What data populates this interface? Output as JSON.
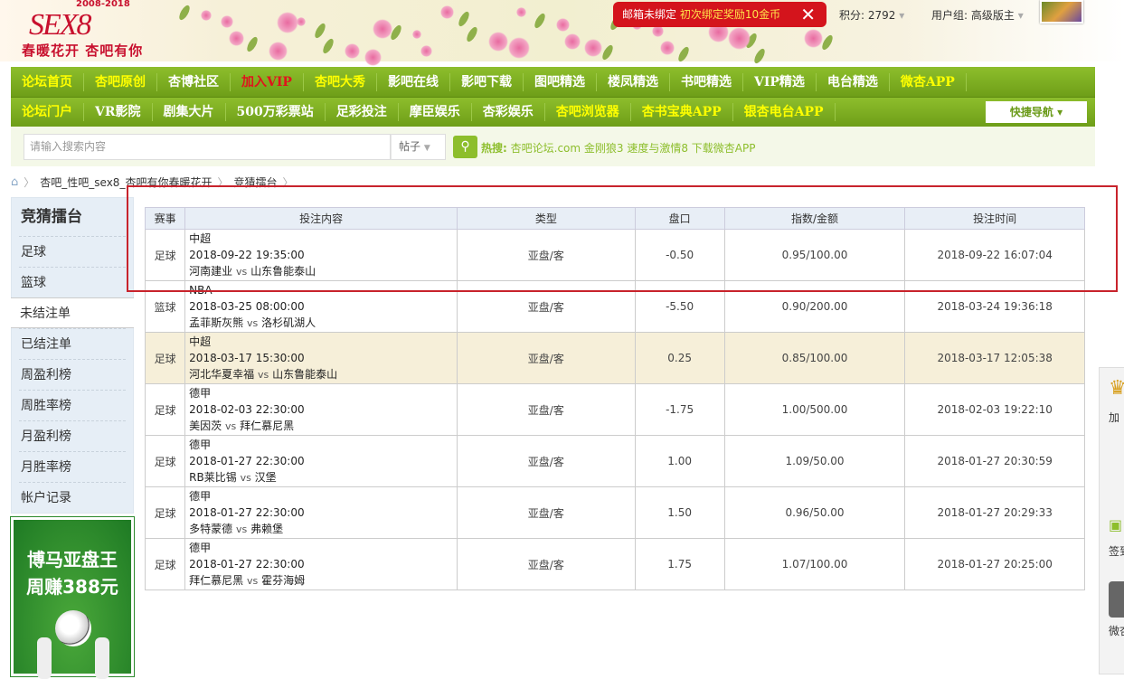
{
  "header": {
    "logo_text": "SEX8",
    "logo_years": "2008-2018",
    "slogan": "春暖花开 杏吧有你",
    "alert": {
      "prefix": "邮箱未绑定",
      "highlight": "初次绑定奖励10金币",
      "close_icon": "close-icon"
    },
    "points": "积分: 2792",
    "user_group": "用户组: 高级版主"
  },
  "nav_row1": [
    {
      "label": "论坛首页",
      "color": "yellow"
    },
    {
      "label": "杏吧原创",
      "color": "yellow"
    },
    {
      "label": "杏博社区",
      "color": "white"
    },
    {
      "label": "加入VIP",
      "color": "red"
    },
    {
      "label": "杏吧大秀",
      "color": "yellow"
    },
    {
      "label": "影吧在线",
      "color": "white"
    },
    {
      "label": "影吧下载",
      "color": "white"
    },
    {
      "label": "图吧精选",
      "color": "white"
    },
    {
      "label": "楼凤精选",
      "color": "white"
    },
    {
      "label": "书吧精选",
      "color": "white"
    },
    {
      "label": "VIP精选",
      "color": "white"
    },
    {
      "label": "电台精选",
      "color": "white"
    },
    {
      "label": "微杏APP",
      "color": "yellow"
    }
  ],
  "nav_row2": [
    {
      "label": "论坛门户",
      "color": "yellow"
    },
    {
      "label": "VR影院",
      "color": "white"
    },
    {
      "label": "剧集大片",
      "color": "white"
    },
    {
      "label": "500万彩票站",
      "color": "white"
    },
    {
      "label": "足彩投注",
      "color": "white"
    },
    {
      "label": "摩臣娱乐",
      "color": "white"
    },
    {
      "label": "杏彩娱乐",
      "color": "white"
    },
    {
      "label": "杏吧浏览器",
      "color": "yellow"
    },
    {
      "label": "杏书宝典APP",
      "color": "yellow"
    },
    {
      "label": "银杏电台APP",
      "color": "yellow"
    }
  ],
  "quick_nav": "快捷导航 ▾",
  "search": {
    "placeholder": "请输入搜索内容",
    "type": "帖子",
    "hot_label": "热搜:",
    "hot_text": "杏吧论坛.com 金刚狼3 速度与激情8 下载微杏APP"
  },
  "breadcrumb": [
    "杏吧_性吧_sex8_杏吧有你春暖花开",
    "竞猜擂台"
  ],
  "sidebar": {
    "title": "竞猜擂台",
    "items": [
      "足球",
      "篮球",
      "未结注单",
      "已结注单",
      "周盈利榜",
      "周胜率榜",
      "月盈利榜",
      "月胜率榜",
      "帐户记录"
    ],
    "active": "未结注单"
  },
  "ad": {
    "line1": "博马亚盘王",
    "line2": "周赚388元"
  },
  "table": {
    "headers": [
      "赛事",
      "投注内容",
      "类型",
      "盘口",
      "指数/金额",
      "投注时间"
    ],
    "rows": [
      {
        "sport": "足球",
        "league": "中超",
        "time": "2018-09-22 19:35:00",
        "home": "河南建业",
        "away": "山东鲁能泰山",
        "type": "亚盘/客",
        "handicap": "-0.50",
        "odds": "0.95/100.00",
        "bet_time": "2018-09-22 16:07:04"
      },
      {
        "sport": "篮球",
        "league": "NBA",
        "time": "2018-03-25 08:00:00",
        "home": "孟菲斯灰熊",
        "away": "洛杉矶湖人",
        "type": "亚盘/客",
        "handicap": "-5.50",
        "odds": "0.90/200.00",
        "bet_time": "2018-03-24 19:36:18"
      },
      {
        "sport": "足球",
        "league": "中超",
        "time": "2018-03-17 15:30:00",
        "home": "河北华夏幸福",
        "away": "山东鲁能泰山",
        "type": "亚盘/客",
        "handicap": "0.25",
        "odds": "0.85/100.00",
        "bet_time": "2018-03-17 12:05:38"
      },
      {
        "sport": "足球",
        "league": "德甲",
        "time": "2018-02-03 22:30:00",
        "home": "美因茨",
        "away": "拜仁慕尼黑",
        "type": "亚盘/客",
        "handicap": "-1.75",
        "odds": "1.00/500.00",
        "bet_time": "2018-02-03 19:22:10"
      },
      {
        "sport": "足球",
        "league": "德甲",
        "time": "2018-01-27 22:30:00",
        "home": "RB莱比锡",
        "away": "汉堡",
        "type": "亚盘/客",
        "handicap": "1.00",
        "odds": "1.09/50.00",
        "bet_time": "2018-01-27 20:30:59"
      },
      {
        "sport": "足球",
        "league": "德甲",
        "time": "2018-01-27 22:30:00",
        "home": "多特蒙德",
        "away": "弗赖堡",
        "type": "亚盘/客",
        "handicap": "1.50",
        "odds": "0.96/50.00",
        "bet_time": "2018-01-27 20:29:33"
      },
      {
        "sport": "足球",
        "league": "德甲",
        "time": "2018-01-27 22:30:00",
        "home": "拜仁慕尼黑",
        "away": "霍芬海姆",
        "type": "亚盘/客",
        "handicap": "1.75",
        "odds": "1.07/100.00",
        "bet_time": "2018-01-27 20:25:00"
      }
    ],
    "vs": "vs"
  },
  "right_panel": [
    "加",
    "签到",
    "微杏"
  ],
  "colors": {
    "nav_green": "#7cae22",
    "highlight_row": "#f6efd9",
    "annotation_red": "#c8232c",
    "alert_red": "#d4141c"
  }
}
